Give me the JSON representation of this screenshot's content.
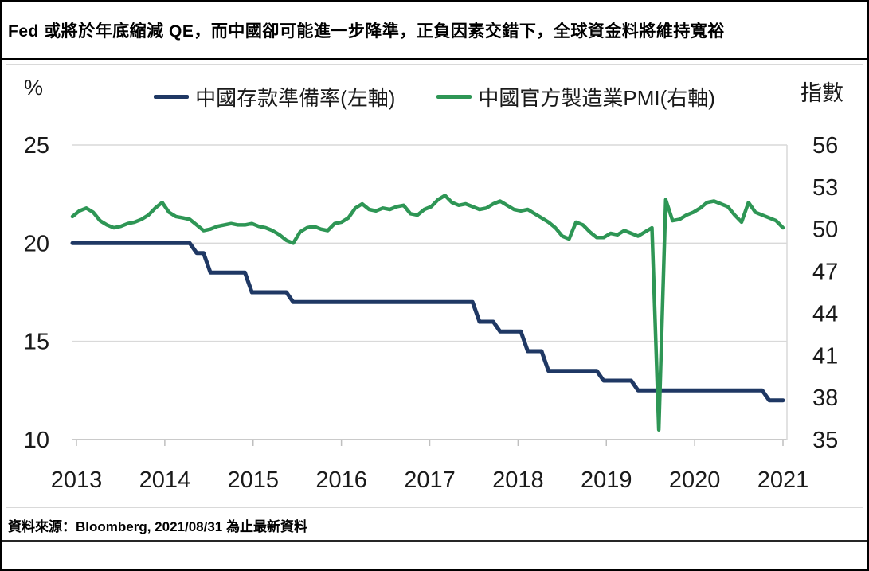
{
  "title": "Fed 或將於年底縮減 QE，而中國卻可能進一步降準，正負因素交錯下，全球資金料將維持寬裕",
  "source": "資料來源：Bloomberg, 2021/08/31 為止最新資料",
  "chart_data": {
    "type": "line",
    "x_start": "2013-01",
    "x_end": "2021-08",
    "x_frequency": "monthly",
    "x_tick_labels": [
      "2013",
      "2014",
      "2015",
      "2016",
      "2017",
      "2018",
      "2019",
      "2020",
      "2021"
    ],
    "grid": "horizontal-only",
    "legend_position": "top-center",
    "left_axis": {
      "title": "%",
      "min": 10,
      "max": 25,
      "ticks": [
        25,
        20,
        15,
        10
      ]
    },
    "right_axis": {
      "title": "指數",
      "min": 35,
      "max": 56,
      "ticks": [
        56,
        53,
        50,
        47,
        44,
        41,
        38,
        35
      ]
    },
    "colors": {
      "rrr": "#1F3864",
      "pmi": "#2E9655",
      "gridline": "#D9D9D9",
      "axis": "#BFBFBF",
      "label": "#1a1a1a"
    },
    "series": [
      {
        "name": "中國存款準備率(左軸)",
        "axis": "left",
        "color": "#1F3864",
        "values": [
          20,
          20,
          20,
          20,
          20,
          20,
          20,
          20,
          20,
          20,
          20,
          20,
          20,
          20,
          20,
          20,
          20,
          20,
          19.5,
          19.5,
          18.5,
          18.5,
          18.5,
          18.5,
          18.5,
          18.5,
          17.5,
          17.5,
          17.5,
          17.5,
          17.5,
          17.5,
          17,
          17,
          17,
          17,
          17,
          17,
          17,
          17,
          17,
          17,
          17,
          17,
          17,
          17,
          17,
          17,
          17,
          17,
          17,
          17,
          17,
          17,
          17,
          17,
          17,
          17,
          17,
          16,
          16,
          16,
          15.5,
          15.5,
          15.5,
          15.5,
          14.5,
          14.5,
          14.5,
          13.5,
          13.5,
          13.5,
          13.5,
          13.5,
          13.5,
          13.5,
          13.5,
          13,
          13,
          13,
          13,
          13,
          12.5,
          12.5,
          12.5,
          12.5,
          12.5,
          12.5,
          12.5,
          12.5,
          12.5,
          12.5,
          12.5,
          12.5,
          12.5,
          12.5,
          12.5,
          12.5,
          12.5,
          12.5,
          12.5,
          12,
          12,
          12
        ]
      },
      {
        "name": "中國官方製造業PMI(右軸)",
        "axis": "right",
        "color": "#2E9655",
        "values": [
          50.9,
          51.3,
          51.5,
          51.2,
          50.6,
          50.3,
          50.1,
          50.2,
          50.4,
          50.5,
          50.7,
          51.0,
          51.5,
          51.9,
          51.2,
          50.9,
          50.8,
          50.7,
          50.3,
          49.9,
          50.0,
          50.2,
          50.3,
          50.4,
          50.3,
          50.3,
          50.4,
          50.2,
          50.1,
          49.9,
          49.6,
          49.2,
          49.0,
          49.8,
          50.1,
          50.2,
          50.0,
          49.9,
          50.4,
          50.5,
          50.8,
          51.5,
          51.8,
          51.4,
          51.3,
          51.5,
          51.4,
          51.6,
          51.7,
          51.1,
          51.0,
          51.4,
          51.6,
          52.1,
          52.4,
          51.9,
          51.7,
          51.8,
          51.6,
          51.4,
          51.5,
          51.8,
          52.0,
          51.7,
          51.4,
          51.3,
          51.4,
          51.1,
          50.8,
          50.5,
          50.1,
          49.5,
          49.3,
          50.5,
          50.3,
          49.8,
          49.4,
          49.4,
          49.7,
          49.6,
          49.9,
          49.7,
          49.5,
          49.8,
          50.1,
          35.7,
          52.1,
          50.6,
          50.7,
          51.0,
          51.2,
          51.5,
          51.9,
          52.0,
          51.8,
          51.6,
          51.0,
          50.5,
          51.9,
          51.2,
          51.0,
          50.8,
          50.6,
          50.1
        ]
      }
    ]
  }
}
